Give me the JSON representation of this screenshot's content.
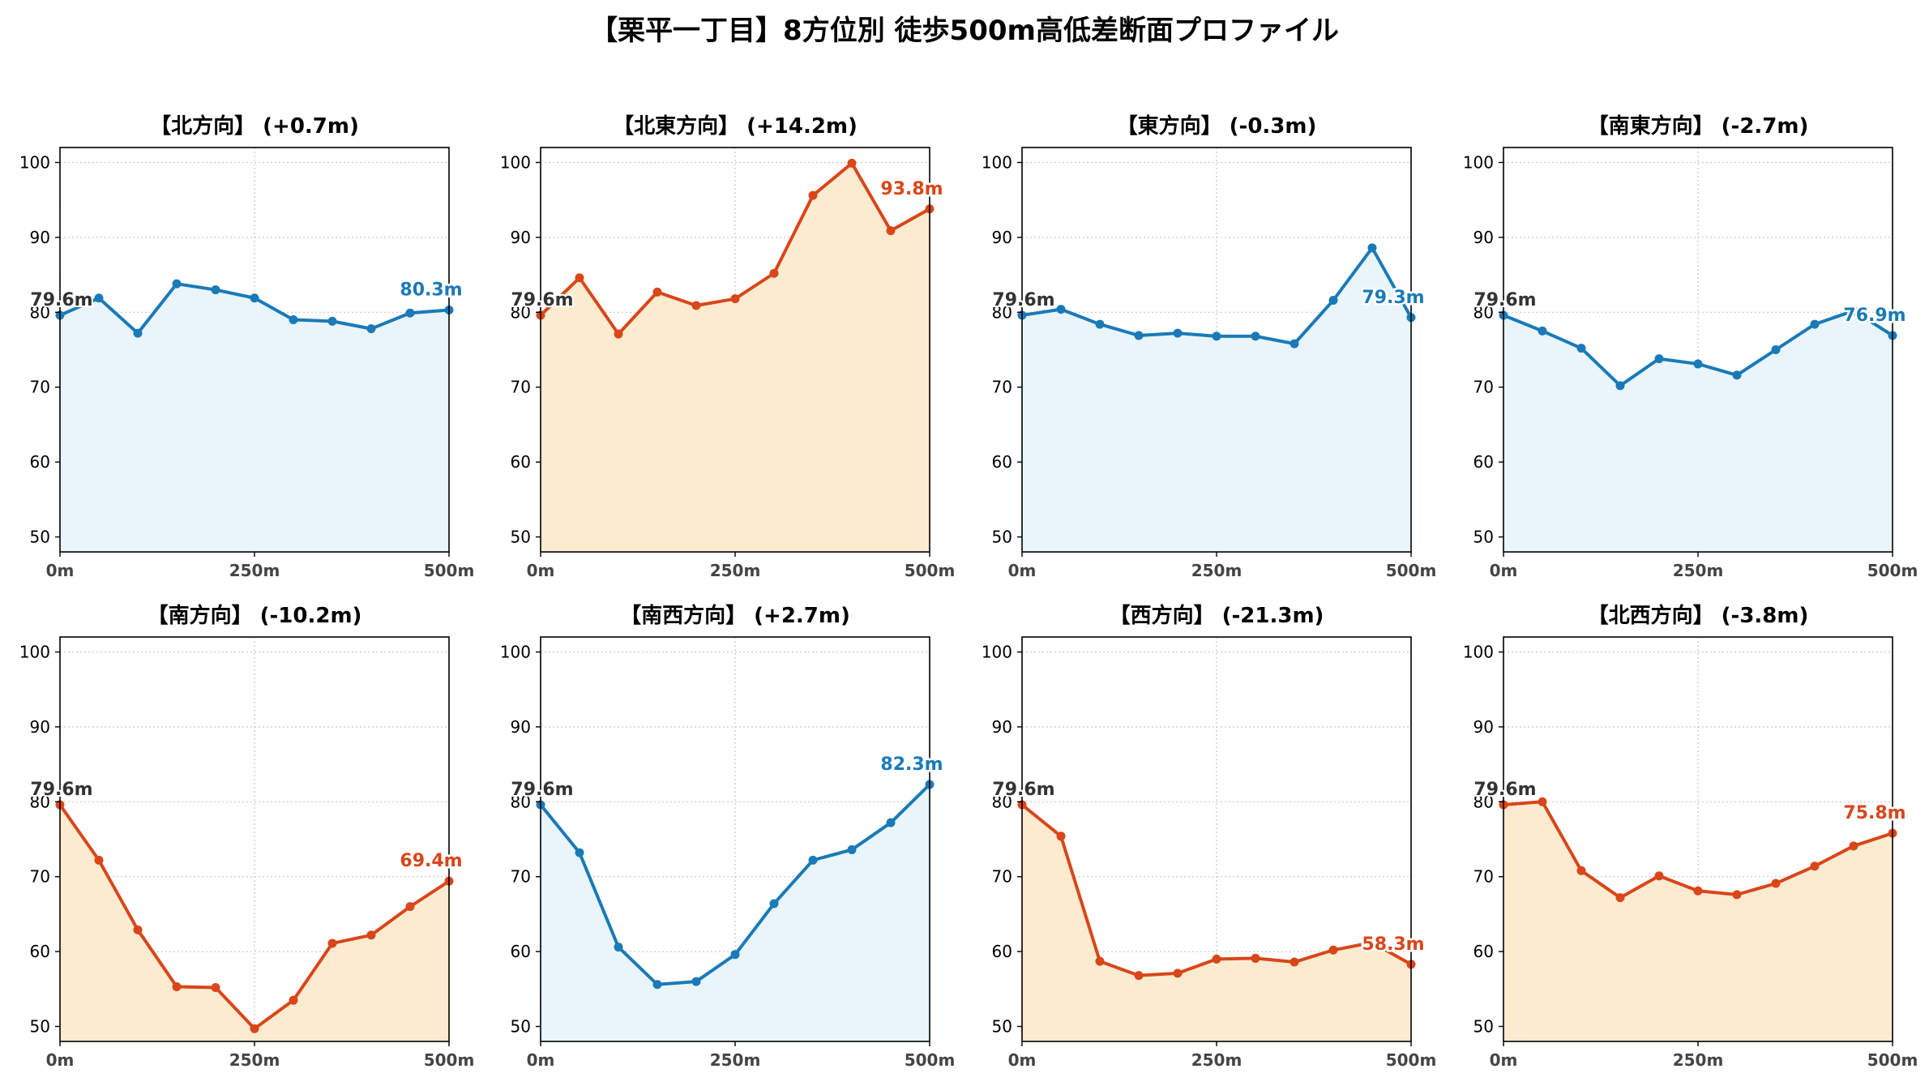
{
  "page": {
    "title": "【栗平一丁目】8方位別 徒歩500m高低差断面プロファイル"
  },
  "colors": {
    "up": "#d9461a",
    "up_fill": "#fdebd0",
    "down": "#1a7ab8",
    "down_fill": "#e9f5fb",
    "start_label": "#333333"
  },
  "chart_data": [
    {
      "type": "area",
      "title": "【北方向】 (+0.7m)",
      "trend": "down",
      "x": [
        0,
        50,
        100,
        150,
        200,
        250,
        300,
        350,
        400,
        450,
        500
      ],
      "y": [
        79.6,
        81.9,
        77.2,
        83.8,
        83.0,
        81.9,
        79.0,
        78.8,
        77.8,
        79.9,
        80.3
      ],
      "start_label": "79.6m",
      "end_label": "80.3m",
      "xticks": [
        "0m",
        "250m",
        "500m"
      ],
      "yticks": [
        50,
        60,
        70,
        80,
        90,
        100
      ],
      "xlim": [
        0,
        500
      ],
      "ylim": [
        48,
        102
      ],
      "grid": true
    },
    {
      "type": "area",
      "title": "【北東方向】 (+14.2m)",
      "trend": "up",
      "x": [
        0,
        50,
        100,
        150,
        200,
        250,
        300,
        350,
        400,
        450,
        500
      ],
      "y": [
        79.6,
        84.6,
        77.1,
        82.7,
        80.9,
        81.8,
        85.2,
        95.6,
        99.9,
        90.9,
        93.8
      ],
      "start_label": "79.6m",
      "end_label": "93.8m",
      "xticks": [
        "0m",
        "250m",
        "500m"
      ],
      "yticks": [
        50,
        60,
        70,
        80,
        90,
        100
      ],
      "xlim": [
        0,
        500
      ],
      "ylim": [
        48,
        102
      ],
      "grid": true
    },
    {
      "type": "area",
      "title": "【東方向】 (-0.3m)",
      "trend": "down",
      "x": [
        0,
        50,
        100,
        150,
        200,
        250,
        300,
        350,
        400,
        450,
        500
      ],
      "y": [
        79.6,
        80.4,
        78.4,
        76.9,
        77.2,
        76.8,
        76.8,
        75.8,
        81.6,
        88.6,
        79.3
      ],
      "start_label": "79.6m",
      "end_label": "79.3m",
      "xticks": [
        "0m",
        "250m",
        "500m"
      ],
      "yticks": [
        50,
        60,
        70,
        80,
        90,
        100
      ],
      "xlim": [
        0,
        500
      ],
      "ylim": [
        48,
        102
      ],
      "grid": true
    },
    {
      "type": "area",
      "title": "【南東方向】 (-2.7m)",
      "trend": "down",
      "x": [
        0,
        50,
        100,
        150,
        200,
        250,
        300,
        350,
        400,
        450,
        500
      ],
      "y": [
        79.6,
        77.5,
        75.2,
        70.2,
        73.8,
        73.1,
        71.6,
        75.0,
        78.4,
        80.2,
        76.9
      ],
      "start_label": "79.6m",
      "end_label": "76.9m",
      "xticks": [
        "0m",
        "250m",
        "500m"
      ],
      "yticks": [
        50,
        60,
        70,
        80,
        90,
        100
      ],
      "xlim": [
        0,
        500
      ],
      "ylim": [
        48,
        102
      ],
      "grid": true
    },
    {
      "type": "area",
      "title": "【南方向】 (-10.2m)",
      "trend": "up",
      "x": [
        0,
        50,
        100,
        150,
        200,
        250,
        300,
        350,
        400,
        450,
        500
      ],
      "y": [
        79.6,
        72.2,
        62.9,
        55.3,
        55.2,
        49.7,
        53.5,
        61.1,
        62.2,
        66.0,
        69.4
      ],
      "start_label": "79.6m",
      "end_label": "69.4m",
      "xticks": [
        "0m",
        "250m",
        "500m"
      ],
      "yticks": [
        50,
        60,
        70,
        80,
        90,
        100
      ],
      "xlim": [
        0,
        500
      ],
      "ylim": [
        48,
        102
      ],
      "grid": true
    },
    {
      "type": "area",
      "title": "【南西方向】 (+2.7m)",
      "trend": "down",
      "x": [
        0,
        50,
        100,
        150,
        200,
        250,
        300,
        350,
        400,
        450,
        500
      ],
      "y": [
        79.6,
        73.2,
        60.6,
        55.6,
        56.0,
        59.6,
        66.4,
        72.2,
        73.6,
        77.2,
        82.3
      ],
      "start_label": "79.6m",
      "end_label": "82.3m",
      "xticks": [
        "0m",
        "250m",
        "500m"
      ],
      "yticks": [
        50,
        60,
        70,
        80,
        90,
        100
      ],
      "xlim": [
        0,
        500
      ],
      "ylim": [
        48,
        102
      ],
      "grid": true
    },
    {
      "type": "area",
      "title": "【西方向】 (-21.3m)",
      "trend": "up",
      "x": [
        0,
        50,
        100,
        150,
        200,
        250,
        300,
        350,
        400,
        450,
        500
      ],
      "y": [
        79.6,
        75.4,
        58.7,
        56.8,
        57.1,
        59.0,
        59.1,
        58.6,
        60.2,
        61.2,
        58.3
      ],
      "start_label": "79.6m",
      "end_label": "58.3m",
      "xticks": [
        "0m",
        "250m",
        "500m"
      ],
      "yticks": [
        50,
        60,
        70,
        80,
        90,
        100
      ],
      "xlim": [
        0,
        500
      ],
      "ylim": [
        48,
        102
      ],
      "grid": true
    },
    {
      "type": "area",
      "title": "【北西方向】 (-3.8m)",
      "trend": "up",
      "x": [
        0,
        50,
        100,
        150,
        200,
        250,
        300,
        350,
        400,
        450,
        500
      ],
      "y": [
        79.6,
        80.0,
        70.8,
        67.2,
        70.1,
        68.1,
        67.6,
        69.1,
        71.4,
        74.1,
        75.8
      ],
      "start_label": "79.6m",
      "end_label": "75.8m",
      "xticks": [
        "0m",
        "250m",
        "500m"
      ],
      "yticks": [
        50,
        60,
        70,
        80,
        90,
        100
      ],
      "xlim": [
        0,
        500
      ],
      "ylim": [
        48,
        102
      ],
      "grid": true
    }
  ]
}
